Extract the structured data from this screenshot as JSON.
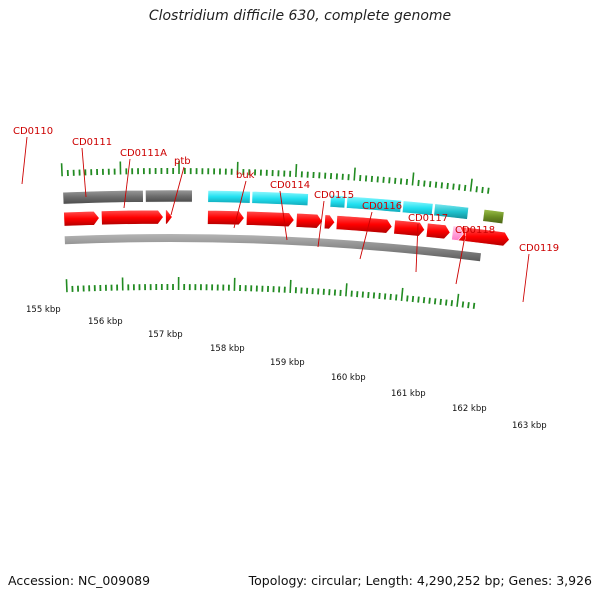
{
  "title": "Clostridium difficile 630, complete genome",
  "footer": {
    "accession": "Accession: NC_009089",
    "summary": "Topology: circular; Length: 4,290,252 bp; Genes: 3,926"
  },
  "colors": {
    "backbone": "#8a8a8a",
    "cds": "#ff0000",
    "gene_cyan": "#22e0f0",
    "gene_grey": "#6e6e6e",
    "label": "#cc0000",
    "tick": "#228b22",
    "pink": "#ff9ad5",
    "olive": "#6b8e23"
  },
  "gene_labels": [
    "CD0110",
    "CD0111",
    "CD0111A",
    "ptb",
    "buk",
    "CD0114",
    "CD0115",
    "CD0116",
    "CD0117",
    "CD0118",
    "CD0119"
  ],
  "kbp_labels": [
    "155 kbp",
    "156 kbp",
    "157 kbp",
    "158 kbp",
    "159 kbp",
    "160 kbp",
    "161 kbp",
    "162 kbp",
    "163 kbp"
  ]
}
